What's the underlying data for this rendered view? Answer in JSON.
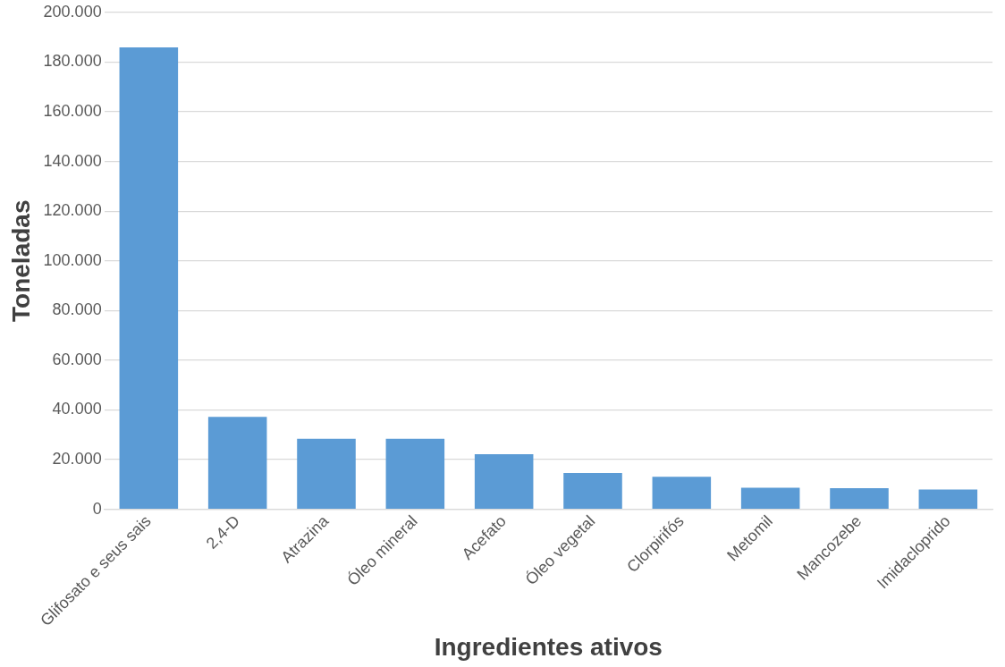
{
  "chart_data": {
    "type": "bar",
    "xlabel": "Ingredientes ativos",
    "ylabel": "Toneladas",
    "categories": [
      "Glifosato e seus sais",
      "2,4-D",
      "Atrazina",
      "Óleo mineral",
      "Acefato",
      "Óleo vegetal",
      "Clorpirifós",
      "Metomil",
      "Mancozebe",
      "Imidacloprido"
    ],
    "values": [
      185900,
      37200,
      28400,
      28400,
      22200,
      14600,
      13100,
      8700,
      8500,
      8000
    ],
    "color": "#5b9bd5",
    "ylim": [
      0,
      200000
    ],
    "yticks": [
      {
        "value": 0,
        "label": "0"
      },
      {
        "value": 20000,
        "label": "20.000"
      },
      {
        "value": 40000,
        "label": "40.000"
      },
      {
        "value": 60000,
        "label": "60.000"
      },
      {
        "value": 80000,
        "label": "80.000"
      },
      {
        "value": 100000,
        "label": "100.000"
      },
      {
        "value": 120000,
        "label": "120.000"
      },
      {
        "value": 140000,
        "label": "140.000"
      },
      {
        "value": 160000,
        "label": "160.000"
      },
      {
        "value": 180000,
        "label": "180.000"
      },
      {
        "value": 200000,
        "label": "200.000"
      }
    ],
    "grid": "y",
    "legend": false
  }
}
